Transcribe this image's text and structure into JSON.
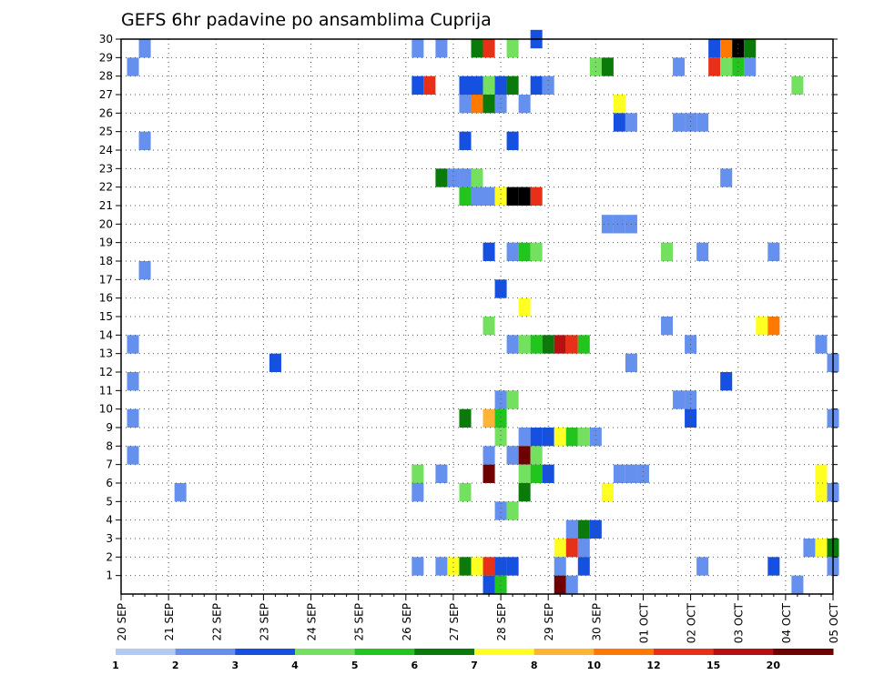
{
  "chart_data": {
    "type": "heatmap",
    "title": "GEFS 6hr padavine po ansamblima Cuprija",
    "x_tick_labels": [
      "20 SEP",
      "21 SEP",
      "22 SEP",
      "23 SEP",
      "24 SEP",
      "25 SEP",
      "26 SEP",
      "27 SEP",
      "28 SEP",
      "29 SEP",
      "30 SEP",
      "01 OCT",
      "02 OCT",
      "03 OCT",
      "04 OCT",
      "05 OCT"
    ],
    "x_range_days": [
      0,
      15
    ],
    "y_tick_labels": [
      "1",
      "2",
      "3",
      "4",
      "5",
      "6",
      "7",
      "8",
      "9",
      "10",
      "11",
      "12",
      "13",
      "14",
      "15",
      "16",
      "17",
      "18",
      "19",
      "20",
      "21",
      "22",
      "23",
      "24",
      "25",
      "26",
      "27",
      "28",
      "29",
      "30"
    ],
    "y_range": [
      0,
      30
    ],
    "grid": true,
    "colorbar": {
      "placement": "bottom",
      "labels": [
        "1",
        "2",
        "3",
        "4",
        "5",
        "6",
        "7",
        "8",
        "10",
        "12",
        "15",
        "20"
      ],
      "colors": [
        "#b4c8f5",
        "#6690ee",
        "#1650e0",
        "#74e060",
        "#22c41e",
        "#0a7a0a",
        "#ffff22",
        "#ffb438",
        "#ff7800",
        "#e83018",
        "#b81010",
        "#6e0000"
      ]
    },
    "cells": [
      [
        29.5,
        6.75,
        1
      ],
      [
        29.5,
        7.5,
        5
      ],
      [
        29.5,
        7.75,
        9
      ],
      [
        29.5,
        8.25,
        3
      ],
      [
        29.5,
        12.5,
        2
      ],
      [
        29.5,
        12.75,
        8
      ],
      [
        29.5,
        13,
        12
      ],
      [
        29.5,
        13.25,
        5
      ],
      [
        29.5,
        0.5,
        1
      ],
      [
        29.5,
        6.25,
        1
      ],
      [
        30,
        8.75,
        2
      ],
      [
        28.5,
        0.25,
        1
      ],
      [
        28.5,
        10,
        3
      ],
      [
        28.5,
        10.25,
        5
      ],
      [
        28.5,
        11.75,
        1
      ],
      [
        28.5,
        12.5,
        9
      ],
      [
        28.5,
        12.75,
        3
      ],
      [
        28.5,
        13,
        4
      ],
      [
        28.5,
        13.25,
        1
      ],
      [
        27.5,
        6.25,
        2
      ],
      [
        27.5,
        6.5,
        9
      ],
      [
        27.5,
        7.25,
        2
      ],
      [
        27.5,
        7.5,
        2
      ],
      [
        27.5,
        7.75,
        3
      ],
      [
        27.5,
        8,
        2
      ],
      [
        27.5,
        8.25,
        5
      ],
      [
        27.5,
        8.75,
        2
      ],
      [
        27.5,
        9,
        1
      ],
      [
        27.5,
        14.25,
        3
      ],
      [
        26.5,
        7.25,
        1
      ],
      [
        26.5,
        7.5,
        8
      ],
      [
        26.5,
        7.75,
        5
      ],
      [
        26.5,
        8,
        1
      ],
      [
        26.5,
        8.5,
        1
      ],
      [
        26.5,
        10.5,
        6
      ],
      [
        25.5,
        10.5,
        2
      ],
      [
        25.5,
        10.75,
        1
      ],
      [
        25.5,
        11.75,
        1
      ],
      [
        25.5,
        12,
        1
      ],
      [
        25.5,
        12.25,
        1
      ],
      [
        24.5,
        0.5,
        1
      ],
      [
        24.5,
        7.25,
        2
      ],
      [
        24.5,
        8.25,
        2
      ],
      [
        22.5,
        6.75,
        5
      ],
      [
        22.5,
        7,
        1
      ],
      [
        22.5,
        7.25,
        1
      ],
      [
        22.5,
        7.5,
        3
      ],
      [
        22.5,
        12.75,
        1
      ],
      [
        21.5,
        7.25,
        4
      ],
      [
        21.5,
        7.5,
        1
      ],
      [
        21.5,
        7.75,
        1
      ],
      [
        21.5,
        8,
        6
      ],
      [
        21.5,
        8.25,
        12
      ],
      [
        21.5,
        8.5,
        12
      ],
      [
        21.5,
        8.75,
        9
      ],
      [
        20,
        10.25,
        1
      ],
      [
        20,
        10.5,
        1
      ],
      [
        20,
        10.75,
        1
      ],
      [
        18.5,
        7.75,
        2
      ],
      [
        18.5,
        8.25,
        1
      ],
      [
        18.5,
        8.5,
        4
      ],
      [
        18.5,
        8.75,
        3
      ],
      [
        18.5,
        11.5,
        3
      ],
      [
        18.5,
        12.25,
        1
      ],
      [
        18.5,
        13.75,
        1
      ],
      [
        17.5,
        0.5,
        1
      ],
      [
        16.5,
        8,
        2
      ],
      [
        15.5,
        8.5,
        6
      ],
      [
        14.5,
        7.75,
        3
      ],
      [
        14.5,
        11.5,
        1
      ],
      [
        14.5,
        13.5,
        6
      ],
      [
        14.5,
        13.75,
        8
      ],
      [
        13.5,
        0.25,
        1
      ],
      [
        13.5,
        8.25,
        1
      ],
      [
        13.5,
        8.5,
        3
      ],
      [
        13.5,
        8.75,
        4
      ],
      [
        13.5,
        9,
        5
      ],
      [
        13.5,
        9.25,
        10
      ],
      [
        13.5,
        9.5,
        9
      ],
      [
        13.5,
        9.75,
        4
      ],
      [
        13.5,
        12,
        1
      ],
      [
        13.5,
        14.75,
        1
      ],
      [
        12.5,
        3.25,
        2
      ],
      [
        12.5,
        10.75,
        1
      ],
      [
        12.5,
        15,
        1
      ],
      [
        11.5,
        0.25,
        1
      ],
      [
        11.5,
        12.75,
        2
      ],
      [
        10.5,
        8,
        1
      ],
      [
        10.5,
        8.25,
        3
      ],
      [
        10.5,
        11.75,
        1
      ],
      [
        10.5,
        12,
        1
      ],
      [
        9.5,
        0.25,
        1
      ],
      [
        9.5,
        7.25,
        5
      ],
      [
        9.5,
        7.75,
        7
      ],
      [
        9.5,
        8,
        4
      ],
      [
        9.5,
        12,
        2
      ],
      [
        9.5,
        15,
        1
      ],
      [
        8.5,
        8,
        3
      ],
      [
        8.5,
        8.5,
        1
      ],
      [
        8.5,
        8.75,
        2
      ],
      [
        8.5,
        9,
        2
      ],
      [
        8.5,
        9.25,
        6
      ],
      [
        8.5,
        9.5,
        4
      ],
      [
        8.5,
        9.75,
        3
      ],
      [
        8.5,
        10,
        1
      ],
      [
        7.5,
        0.25,
        1
      ],
      [
        7.5,
        7.75,
        1
      ],
      [
        7.5,
        8.25,
        8
      ],
      [
        7.5,
        8.5,
        11
      ],
      [
        7.5,
        8.25,
        1
      ],
      [
        7.5,
        8.75,
        3
      ],
      [
        6.5,
        6.25,
        3
      ],
      [
        6.5,
        6.75,
        1
      ],
      [
        6.5,
        7.75,
        11
      ],
      [
        6.5,
        8.5,
        3
      ],
      [
        6.5,
        8.75,
        4
      ],
      [
        6.5,
        9,
        2
      ],
      [
        6.5,
        10.5,
        1
      ],
      [
        6.5,
        10.75,
        1
      ],
      [
        6.5,
        11,
        1
      ],
      [
        6.5,
        14.75,
        6
      ],
      [
        5.5,
        1.25,
        1
      ],
      [
        5.5,
        6.25,
        1
      ],
      [
        5.5,
        7.25,
        3
      ],
      [
        5.5,
        8.5,
        5
      ],
      [
        5.5,
        10.25,
        6
      ],
      [
        5.5,
        14.75,
        6
      ],
      [
        5.5,
        15,
        1
      ],
      [
        4.5,
        8,
        1
      ],
      [
        4.5,
        8.25,
        3
      ],
      [
        3.5,
        9.5,
        1
      ],
      [
        3.5,
        9.75,
        5
      ],
      [
        3.5,
        10,
        2
      ],
      [
        2.5,
        9.25,
        6
      ],
      [
        2.5,
        9.5,
        9
      ],
      [
        2.5,
        9.75,
        1
      ],
      [
        2.5,
        14.5,
        1
      ],
      [
        2.5,
        14.75,
        6
      ],
      [
        2.5,
        15,
        5
      ],
      [
        1.5,
        6.25,
        1
      ],
      [
        1.5,
        6.75,
        1
      ],
      [
        1.5,
        7,
        6
      ],
      [
        1.5,
        7.25,
        5
      ],
      [
        1.5,
        7.5,
        6
      ],
      [
        1.5,
        7.75,
        9
      ],
      [
        1.5,
        8,
        2
      ],
      [
        1.5,
        8.25,
        2
      ],
      [
        1.5,
        9.25,
        1
      ],
      [
        1.5,
        9.75,
        2
      ],
      [
        1.5,
        12.25,
        1
      ],
      [
        1.5,
        13.75,
        2
      ],
      [
        1.5,
        15,
        1
      ],
      [
        0.5,
        7.75,
        2
      ],
      [
        0.5,
        8,
        4
      ],
      [
        0.5,
        9.25,
        11
      ],
      [
        0.5,
        9.5,
        1
      ],
      [
        0.5,
        14.25,
        1
      ]
    ]
  }
}
